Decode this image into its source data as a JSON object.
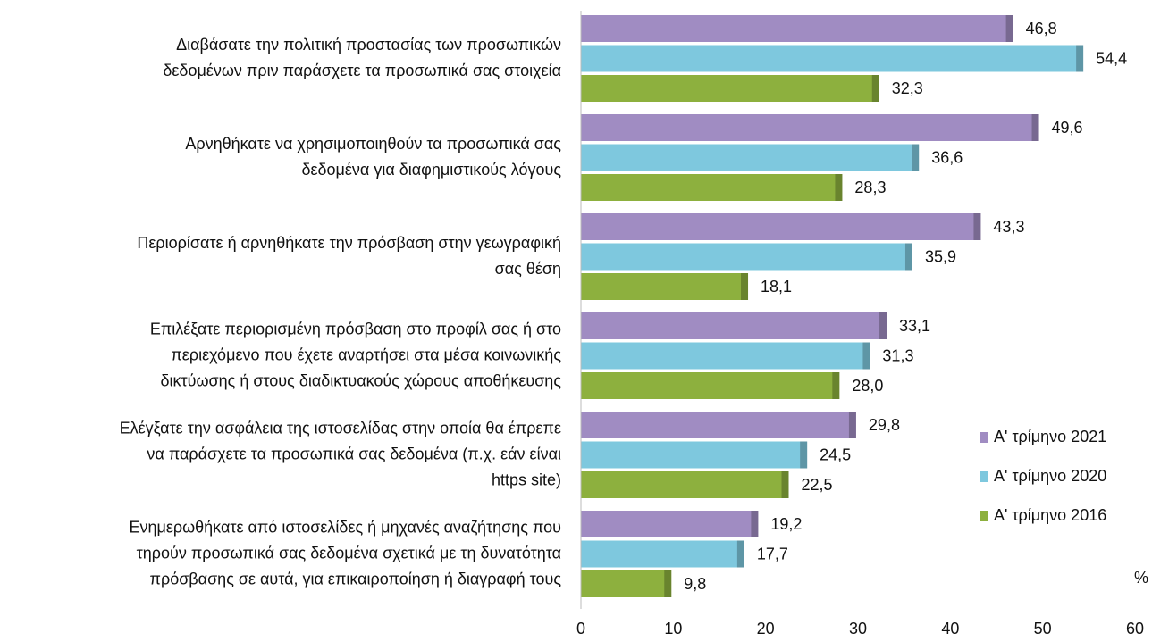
{
  "chart_data": {
    "type": "hbar",
    "categories": [
      "Διαβάσατε την πολιτική προστασίας των προσωπικών\nδεδομένων πριν παράσχετε τα προσωπικά σας στοιχεία",
      "Αρνηθήκατε  να χρησιμοποιηθούν τα  προσωπικά  σας\nδεδομένα για διαφημιστικούς λόγους",
      "Περιορίσατε ή αρνηθήκατε την πρόσβαση στην γεωγραφική\nσας θέση",
      "Επιλέξατε περιορισμένη πρόσβαση στο προφίλ σας ή στο\nπεριεχόμενο που έχετε αναρτήσει στα μέσα κοινωνικής\nδικτύωσης ή στους  διαδικτυακούς χώρους  αποθήκευσης",
      "Ελέγξατε την ασφάλεια της ιστοσελίδας στην οποία θα έπρεπε\nνα παράσχετε τα προσωπικά σας δεδομένα  (π.χ. εάν είναι\nhttps site)",
      "Ενημερωθήκατε από ιστοσελίδες ή μηχανές αναζήτησης που\nτηρούν προσωπικά σας δεδομένα σχετικά με τη δυνατότητα\nπρόσβασης σε αυτά, για επικαιροποίηση ή διαγραφή τους"
    ],
    "series": [
      {
        "name": "Α' τρίμηνο 2021",
        "color": "#a08cc2",
        "values": [
          46.8,
          49.6,
          43.3,
          33.1,
          29.8,
          19.2
        ],
        "value_labels": [
          "46,8",
          "49,6",
          "43,3",
          "33,1",
          "29,8",
          "19,2"
        ]
      },
      {
        "name": "Α' τρίμηνο 2020",
        "color": "#7ec8de",
        "values": [
          54.4,
          36.6,
          35.9,
          31.3,
          24.5,
          17.7
        ],
        "value_labels": [
          "54,4",
          "36,6",
          "35,9",
          "31,3",
          "24,5",
          "17,7"
        ]
      },
      {
        "name": "Α' τρίμηνο 2016",
        "color": "#8db03e",
        "values": [
          32.3,
          28.3,
          18.1,
          28.0,
          22.5,
          9.8
        ],
        "value_labels": [
          "32,3",
          "28,3",
          "18,1",
          "28,0",
          "22,5",
          "9,8"
        ]
      }
    ],
    "xlim": [
      0,
      60
    ],
    "xticks": [
      0,
      10,
      20,
      30,
      40,
      50,
      60
    ],
    "unit_label": "%",
    "legend": "right"
  }
}
